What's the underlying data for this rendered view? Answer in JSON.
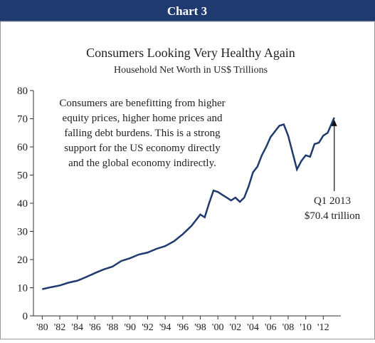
{
  "header": {
    "title": "Chart 3"
  },
  "chart_data": {
    "type": "line",
    "title": "Consumers Looking Very Healthy Again",
    "subtitle": "Household Net Worth in US$ Trillions",
    "annotation": [
      "Consumers are benefitting from higher",
      "equity prices, higher home prices and",
      "falling debt burdens. This is a strong",
      "support for the US economy directly",
      "and the global economy indirectly."
    ],
    "callout": [
      "Q1 2013",
      "$70.4 trillion"
    ],
    "x": [
      1980,
      1981,
      1982,
      1983,
      1984,
      1985,
      1986,
      1987,
      1988,
      1989,
      1990,
      1991,
      1992,
      1993,
      1994,
      1995,
      1996,
      1997,
      1998,
      1998.5,
      1999,
      1999.5,
      2000,
      2000.5,
      2001,
      2001.5,
      2002,
      2002.5,
      2003,
      2003.5,
      2004,
      2004.5,
      2005,
      2005.5,
      2006,
      2006.5,
      2007,
      2007.5,
      2008,
      2008.5,
      2009,
      2009.5,
      2010,
      2010.5,
      2011,
      2011.5,
      2012,
      2012.5,
      2013.25
    ],
    "series": [
      {
        "name": "Household Net Worth",
        "color": "#1f3a6e",
        "values": [
          9.5,
          10.2,
          10.8,
          11.8,
          12.5,
          13.8,
          15.2,
          16.5,
          17.5,
          19.5,
          20.5,
          21.8,
          22.5,
          23.8,
          24.8,
          26.5,
          29,
          32,
          36,
          35,
          40,
          44.5,
          44,
          43,
          42,
          41,
          42,
          40.5,
          42,
          46,
          51,
          53,
          57,
          60,
          63.5,
          65.5,
          67.5,
          68,
          64,
          58,
          52,
          55,
          57,
          56.5,
          61,
          61.5,
          64,
          65,
          70.4
        ]
      }
    ],
    "xlim": [
      1979,
      2014
    ],
    "xticks": [
      {
        "value": 1980,
        "label": "'80"
      },
      {
        "value": 1982,
        "label": "'82"
      },
      {
        "value": 1984,
        "label": "'84"
      },
      {
        "value": 1986,
        "label": "'86"
      },
      {
        "value": 1988,
        "label": "'88"
      },
      {
        "value": 1990,
        "label": "'90"
      },
      {
        "value": 1992,
        "label": "'92"
      },
      {
        "value": 1994,
        "label": "'94"
      },
      {
        "value": 1996,
        "label": "'96"
      },
      {
        "value": 1998,
        "label": "'98"
      },
      {
        "value": 2000,
        "label": "'00"
      },
      {
        "value": 2002,
        "label": "'02"
      },
      {
        "value": 2004,
        "label": "'04"
      },
      {
        "value": 2006,
        "label": "'06"
      },
      {
        "value": 2008,
        "label": "'08"
      },
      {
        "value": 2010,
        "label": "'10"
      },
      {
        "value": 2012,
        "label": "'12"
      }
    ],
    "ylim": [
      0,
      80
    ],
    "yticks": [
      0,
      10,
      20,
      30,
      40,
      50,
      60,
      70,
      80
    ]
  }
}
